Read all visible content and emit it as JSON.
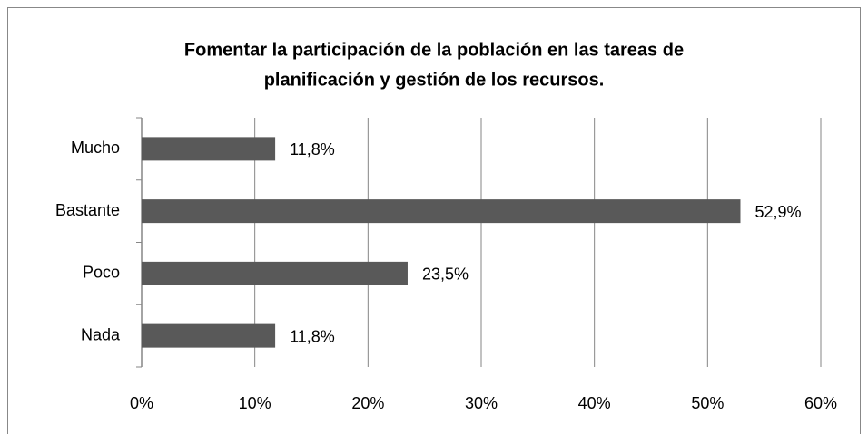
{
  "chart_data": {
    "type": "bar",
    "orientation": "horizontal",
    "title": [
      "Fomentar la participación de la población en las tareas de",
      "planificación y gestión de los recursos."
    ],
    "categories": [
      "Mucho",
      "Bastante",
      "Poco",
      "Nada"
    ],
    "values": [
      11.8,
      52.9,
      23.5,
      11.8
    ],
    "value_labels": [
      "11,8%",
      "52,9%",
      "23,5%",
      "11,8%"
    ],
    "color": "#595959",
    "xlim": [
      0,
      60
    ],
    "xticks": [
      {
        "value": 0,
        "label": "0%"
      },
      {
        "value": 10,
        "label": "10%"
      },
      {
        "value": 20,
        "label": "20%"
      },
      {
        "value": 30,
        "label": "30%"
      },
      {
        "value": 40,
        "label": "40%"
      },
      {
        "value": 50,
        "label": "50%"
      },
      {
        "value": 60,
        "label": "60%"
      }
    ],
    "grid": true
  }
}
